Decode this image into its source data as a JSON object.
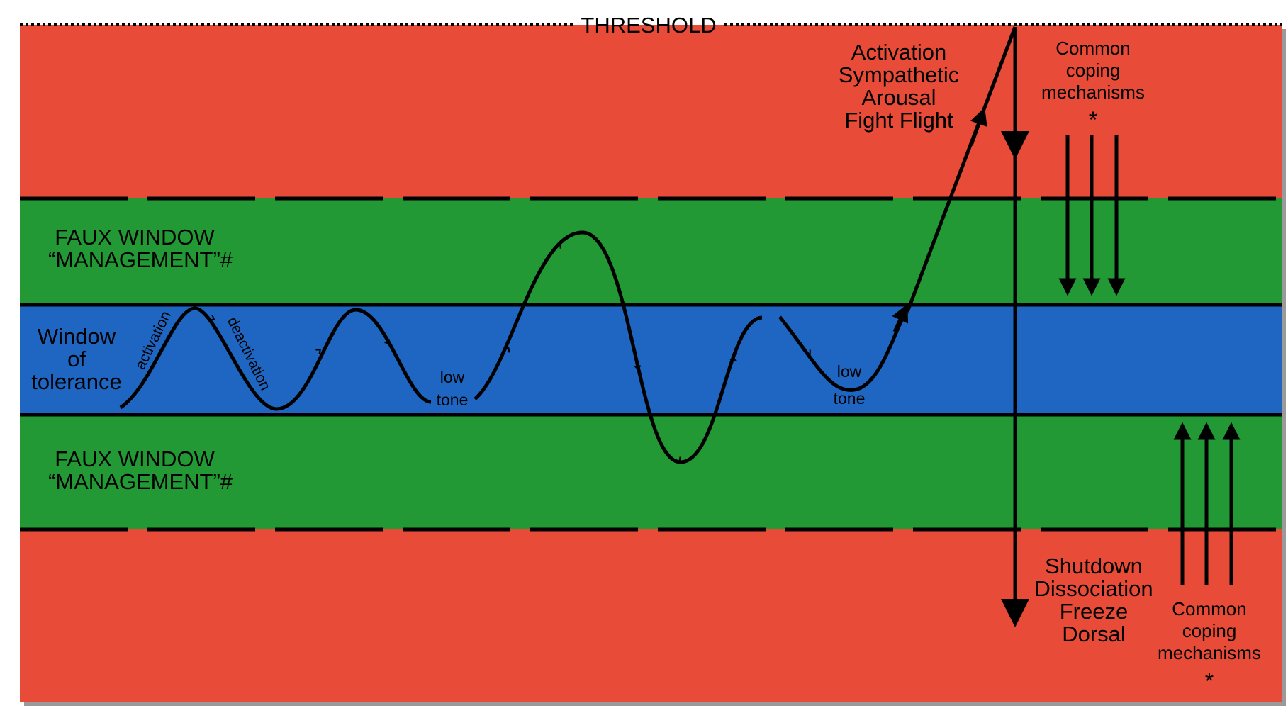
{
  "threshold_label": "THRESHOLD",
  "zones": {
    "top_red": "#e84b37",
    "green": "#229934",
    "blue": "#1f66c2",
    "bottom_red": "#e84b37"
  },
  "colors": {
    "line": "#000000",
    "shadow": "#9a9a9a"
  },
  "window_label": [
    "Window",
    "of",
    "tolerance"
  ],
  "faux_top": [
    "FAUX WINDOW",
    "“MANAGEMENT”#"
  ],
  "faux_bottom": [
    "FAUX WINDOW",
    "“MANAGEMENT”#"
  ],
  "wave_labels": {
    "activation": "activation",
    "deactivation": "deactivation",
    "low_tone_1": [
      "low",
      "tone"
    ],
    "low_tone_2": [
      "low",
      "tone"
    ]
  },
  "activation_label": [
    "Activation",
    "Sympathetic",
    "Arousal",
    "Fight Flight"
  ],
  "shutdown_label": [
    "Shutdown",
    "Dissociation",
    "Freeze",
    "Dorsal"
  ],
  "coping_top": [
    "Common",
    "coping",
    "mechanisms",
    "*"
  ],
  "coping_bottom": [
    "Common",
    "coping",
    "mechanisms",
    "*"
  ]
}
